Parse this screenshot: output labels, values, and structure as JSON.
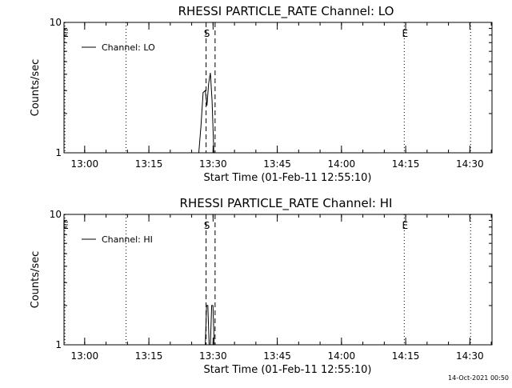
{
  "footer": {
    "timestamp": "14-Oct-2021 00:50"
  },
  "chart_data": [
    {
      "type": "line",
      "title": "RHESSI PARTICLE_RATE Channel: LO",
      "xlabel": "Start Time (01-Feb-11 12:55:10)",
      "ylabel": "Counts/sec",
      "yscale": "log",
      "ylim": [
        1,
        10
      ],
      "xlim_minutes_from_start": [
        0,
        100
      ],
      "y_tick_labels": [
        "1",
        "10"
      ],
      "x_ticks": [
        {
          "label": "13:00",
          "minutes_from_start": 4.83
        },
        {
          "label": "13:15",
          "minutes_from_start": 19.83
        },
        {
          "label": "13:30",
          "minutes_from_start": 34.83
        },
        {
          "label": "13:45",
          "minutes_from_start": 49.83
        },
        {
          "label": "14:00",
          "minutes_from_start": 64.83
        },
        {
          "label": "14:15",
          "minutes_from_start": 79.83
        },
        {
          "label": "14:30",
          "minutes_from_start": 94.83
        }
      ],
      "series": [
        {
          "name": "Channel: LO",
          "x": [
            31.5,
            32.0,
            32.5,
            33.0,
            33.4,
            33.8,
            34.2,
            34.6,
            35.0
          ],
          "y": [
            1,
            1.6,
            2.9,
            3.0,
            2.3,
            3.4,
            4.1,
            2.5,
            1
          ]
        }
      ],
      "markers": [
        {
          "label": "E",
          "x": 0.2,
          "style": "dotted"
        },
        {
          "label": "",
          "x": 14.5,
          "style": "dotted"
        },
        {
          "label": "S",
          "x": 33.2,
          "style": "dashed"
        },
        {
          "label": "",
          "x": 35.3,
          "style": "dashed"
        },
        {
          "label": "E",
          "x": 79.5,
          "style": "dotted"
        },
        {
          "label": "",
          "x": 95.0,
          "style": "dotted"
        }
      ],
      "legend": "top-left"
    },
    {
      "type": "line",
      "title": "RHESSI PARTICLE_RATE Channel: HI",
      "xlabel": "Start Time (01-Feb-11 12:55:10)",
      "ylabel": "Counts/sec",
      "yscale": "log",
      "ylim": [
        1,
        10
      ],
      "xlim_minutes_from_start": [
        0,
        100
      ],
      "y_tick_labels": [
        "1",
        "10"
      ],
      "x_ticks": [
        {
          "label": "13:00",
          "minutes_from_start": 4.83
        },
        {
          "label": "13:15",
          "minutes_from_start": 19.83
        },
        {
          "label": "13:30",
          "minutes_from_start": 34.83
        },
        {
          "label": "13:45",
          "minutes_from_start": 49.83
        },
        {
          "label": "14:00",
          "minutes_from_start": 64.83
        },
        {
          "label": "14:15",
          "minutes_from_start": 79.83
        },
        {
          "label": "14:30",
          "minutes_from_start": 94.83
        }
      ],
      "series": [
        {
          "name": "Channel: HI",
          "x": [
            33.0,
            33.3,
            33.6,
            33.9,
            34.2,
            34.5,
            34.8,
            35.1
          ],
          "y": [
            1,
            2,
            2,
            1,
            1,
            2,
            2,
            1
          ]
        }
      ],
      "markers": [
        {
          "label": "E",
          "x": 0.2,
          "style": "dotted"
        },
        {
          "label": "",
          "x": 14.5,
          "style": "dotted"
        },
        {
          "label": "S",
          "x": 33.2,
          "style": "dashed"
        },
        {
          "label": "",
          "x": 35.3,
          "style": "dashed"
        },
        {
          "label": "E",
          "x": 79.5,
          "style": "dotted"
        },
        {
          "label": "",
          "x": 95.0,
          "style": "dotted"
        }
      ],
      "legend": "top-left"
    }
  ]
}
